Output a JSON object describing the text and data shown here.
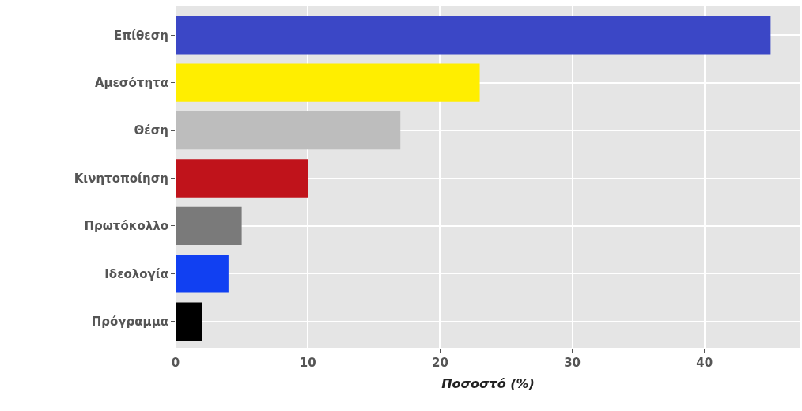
{
  "chart_data": {
    "type": "bar",
    "orientation": "horizontal",
    "xlabel": "Ποσοστό (%)",
    "categories": [
      "Επίθεση",
      "Αμεσότητα",
      "Θέση",
      "Κινητοποίηση",
      "Πρωτόκολλο",
      "Ιδεολογία",
      "Πρόγραμμα"
    ],
    "values": [
      45,
      23,
      17,
      10,
      5,
      4,
      2
    ],
    "colors": [
      "#3b47c6",
      "#ffee00",
      "#bdbdbd",
      "#c0131b",
      "#7a7a7a",
      "#1140f2",
      "#000000"
    ],
    "xlim": [
      0,
      47.25
    ],
    "xticks": [
      0,
      10,
      20,
      30,
      40
    ],
    "grid": true,
    "legend": false
  }
}
